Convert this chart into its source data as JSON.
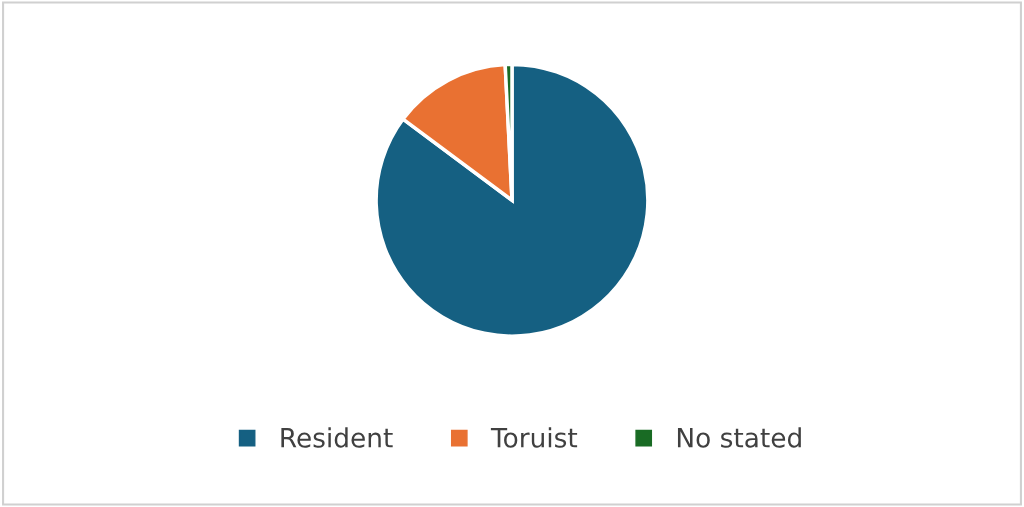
{
  "chart_data": {
    "type": "pie",
    "categories": [
      "Resident",
      "Toruist",
      "No stated"
    ],
    "values": [
      85.2,
      14.0,
      0.8
    ],
    "colors": [
      "#156082",
      "#e97132",
      "#196b24"
    ],
    "legend": "bottom"
  }
}
